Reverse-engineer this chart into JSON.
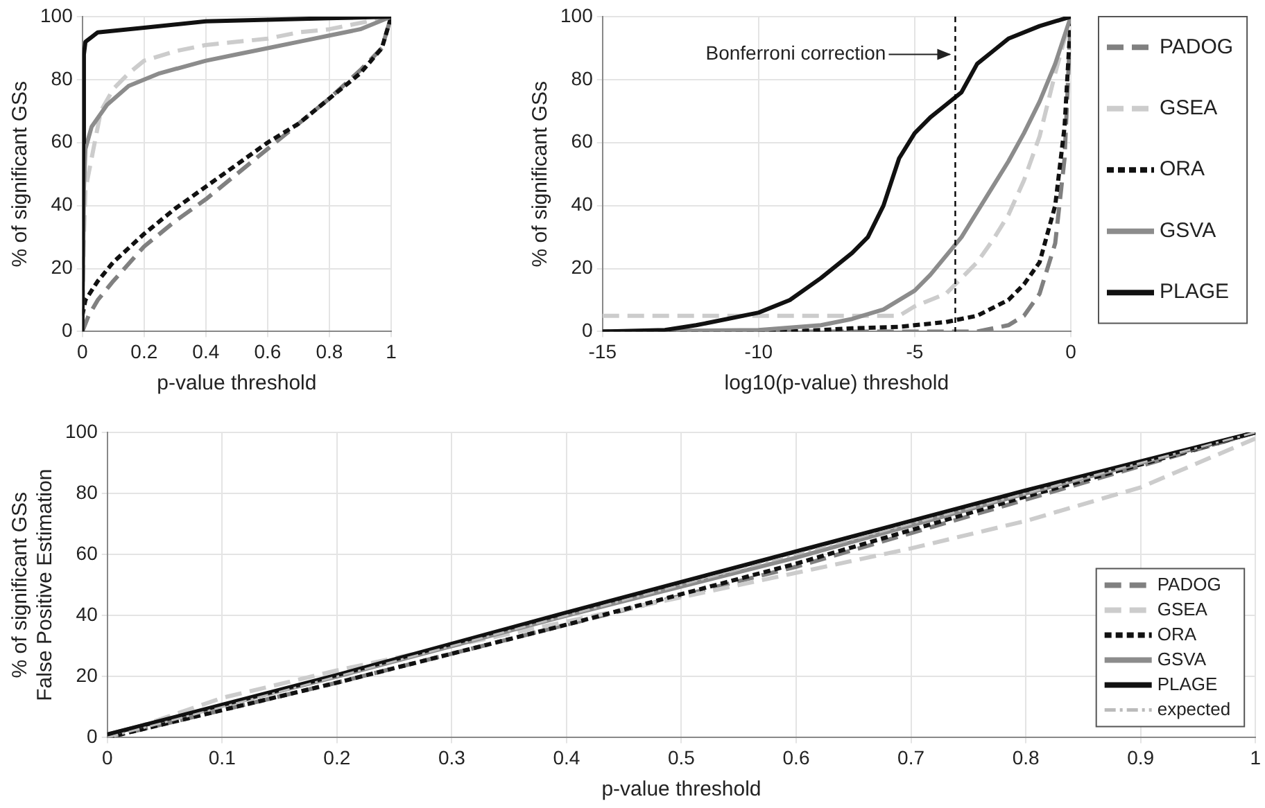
{
  "chart_data": [
    {
      "type": "line",
      "xlabel": "p-value threshold",
      "ylabel": "% of significant GSs",
      "xlim": [
        0,
        1
      ],
      "ylim": [
        0,
        100
      ],
      "xticks": [
        0,
        0.2,
        0.4,
        0.6,
        0.8,
        1
      ],
      "yticks": [
        0,
        20,
        40,
        60,
        80,
        100
      ],
      "grid": true,
      "legend": false,
      "marker": "none",
      "series": [
        {
          "color": "#808080",
          "line_style": "dashed",
          "x": [
            0,
            0.02,
            0.05,
            0.1,
            0.2,
            0.3,
            0.4,
            0.5,
            0.6,
            0.7,
            0.8,
            0.9,
            0.97,
            1
          ],
          "values": [
            0,
            5,
            10,
            16,
            27,
            35,
            42,
            50,
            58,
            66,
            74,
            83,
            90,
            100
          ]
        },
        {
          "color": "#cccccc",
          "line_style": "dashed",
          "x": [
            0,
            0.005,
            0.01,
            0.03,
            0.06,
            0.1,
            0.15,
            0.2,
            0.3,
            0.4,
            0.5,
            0.6,
            0.7,
            0.8,
            0.9,
            1
          ],
          "values": [
            0,
            30,
            45,
            55,
            70,
            77,
            82,
            86,
            89,
            91,
            92,
            93,
            95,
            96,
            98,
            100
          ]
        },
        {
          "color": "#111111",
          "line_style": "dotted",
          "x": [
            0,
            0.01,
            0.05,
            0.1,
            0.2,
            0.3,
            0.4,
            0.5,
            0.6,
            0.7,
            0.8,
            0.9,
            0.97,
            1
          ],
          "values": [
            5,
            10,
            16,
            22,
            31,
            39,
            46,
            53,
            60,
            66,
            74,
            82,
            90,
            100
          ]
        },
        {
          "color": "#8c8c8c",
          "line_style": "solid",
          "x": [
            0,
            0.005,
            0.01,
            0.03,
            0.08,
            0.15,
            0.25,
            0.4,
            0.5,
            0.6,
            0.7,
            0.8,
            0.9,
            1
          ],
          "values": [
            0,
            45,
            58,
            65,
            72,
            78,
            82,
            86,
            88,
            90,
            92,
            94,
            96,
            100
          ]
        },
        {
          "color": "#111111",
          "line_style": "solid",
          "x": [
            0,
            0.003,
            0.005,
            0.01,
            0.05,
            0.2,
            0.4,
            0.6,
            0.8,
            1
          ],
          "values": [
            0,
            60,
            88,
            92,
            95,
            96.5,
            98.5,
            99,
            99.5,
            100
          ]
        }
      ]
    },
    {
      "type": "line",
      "xlabel": "log10(p-value) threshold",
      "ylabel": "% of significant GSs",
      "xlim": [
        -15,
        0
      ],
      "ylim": [
        0,
        100
      ],
      "xticks": [
        -15,
        -10,
        -5,
        0
      ],
      "yticks": [
        0,
        20,
        40,
        60,
        80,
        100
      ],
      "grid": true,
      "legend": "right",
      "marker": "none",
      "ref_lines": [
        {
          "axis": "x",
          "value": -3.7,
          "color": "#000000",
          "line_style": "dashed"
        }
      ],
      "annotations": [
        {
          "text": "Bonferroni correction",
          "x": -3.7,
          "y": 88
        }
      ],
      "series": [
        {
          "name": "PADOG",
          "color": "#808080",
          "line_style": "dashed",
          "x": [
            -15,
            -3,
            -2,
            -1.5,
            -1,
            -0.5,
            -0.2,
            0
          ],
          "values": [
            0,
            0,
            2,
            5,
            12,
            28,
            55,
            100
          ]
        },
        {
          "name": "GSEA",
          "color": "#cccccc",
          "line_style": "dashed",
          "x": [
            -15,
            -5.5,
            -5,
            -4,
            -3.5,
            -3,
            -2.5,
            -2,
            -1.5,
            -1,
            -0.5,
            0
          ],
          "values": [
            5,
            5,
            8,
            12,
            17,
            22,
            29,
            37,
            48,
            62,
            82,
            100
          ]
        },
        {
          "name": "ORA",
          "color": "#111111",
          "line_style": "dotted",
          "x": [
            -15,
            -9,
            -7,
            -5.5,
            -4,
            -3,
            -2,
            -1.5,
            -1,
            -0.5,
            -0.2,
            0
          ],
          "values": [
            0,
            0,
            1,
            1.5,
            3,
            5,
            10,
            15,
            22,
            40,
            65,
            100
          ]
        },
        {
          "name": "GSVA",
          "color": "#8c8c8c",
          "line_style": "solid",
          "x": [
            -15,
            -10,
            -8,
            -7,
            -6,
            -5,
            -4.5,
            -4,
            -3.5,
            -3,
            -2.5,
            -2,
            -1.5,
            -1,
            -0.5,
            0
          ],
          "values": [
            0,
            0.5,
            2,
            4,
            7,
            13,
            18,
            24,
            30,
            38,
            46,
            54,
            63,
            73,
            85,
            100
          ]
        },
        {
          "name": "PLAGE",
          "color": "#111111",
          "line_style": "solid",
          "x": [
            -15,
            -13,
            -12,
            -11,
            -10,
            -9,
            -8,
            -7,
            -6.5,
            -6,
            -5.5,
            -5,
            -4.5,
            -4,
            -3.5,
            -3,
            -2.5,
            -2,
            -1,
            0
          ],
          "values": [
            0,
            0.5,
            2,
            4,
            6,
            10,
            17,
            25,
            30,
            40,
            55,
            63,
            68,
            72,
            76,
            85,
            89,
            93,
            97,
            100
          ]
        }
      ]
    },
    {
      "type": "line",
      "xlabel": "p-value threshold",
      "ylabel": "% of significant GSs\nFalse Positive Estimation",
      "xlim": [
        0,
        1
      ],
      "ylim": [
        0,
        100
      ],
      "xticks": [
        0,
        0.1,
        0.2,
        0.3,
        0.4,
        0.5,
        0.6,
        0.7,
        0.8,
        0.9,
        1
      ],
      "yticks": [
        0,
        20,
        40,
        60,
        80,
        100
      ],
      "grid": true,
      "legend": "bottom right",
      "marker": "none",
      "series": [
        {
          "name": "PADOG",
          "color": "#808080",
          "line_style": "dashed",
          "x": [
            0,
            0.2,
            0.4,
            0.6,
            0.8,
            1
          ],
          "values": [
            0,
            18,
            37,
            56,
            78,
            100
          ]
        },
        {
          "name": "GSEA",
          "color": "#cccccc",
          "line_style": "dashed",
          "x": [
            0,
            0.1,
            0.2,
            0.3,
            0.4,
            0.5,
            0.6,
            0.7,
            0.8,
            0.9,
            1
          ],
          "values": [
            0,
            13,
            22,
            30,
            38,
            46,
            54,
            62,
            71,
            82,
            98
          ]
        },
        {
          "name": "ORA",
          "color": "#111111",
          "line_style": "dotted",
          "x": [
            0,
            0.2,
            0.4,
            0.6,
            0.8,
            1
          ],
          "values": [
            0,
            18,
            37,
            57,
            79,
            100
          ]
        },
        {
          "name": "GSVA",
          "color": "#8c8c8c",
          "line_style": "solid",
          "x": [
            0,
            0.2,
            0.4,
            0.6,
            0.8,
            1
          ],
          "values": [
            1,
            20,
            40,
            59,
            80,
            100
          ]
        },
        {
          "name": "PLAGE",
          "color": "#111111",
          "line_style": "solid",
          "x": [
            0,
            0.2,
            0.4,
            0.6,
            0.8,
            1
          ],
          "values": [
            1,
            20.5,
            41,
            61,
            81,
            100
          ]
        },
        {
          "name": "expected",
          "color": "#bbbbbb",
          "line_style": "dashdot",
          "x": [
            0,
            1
          ],
          "values": [
            0,
            100
          ]
        }
      ]
    }
  ]
}
